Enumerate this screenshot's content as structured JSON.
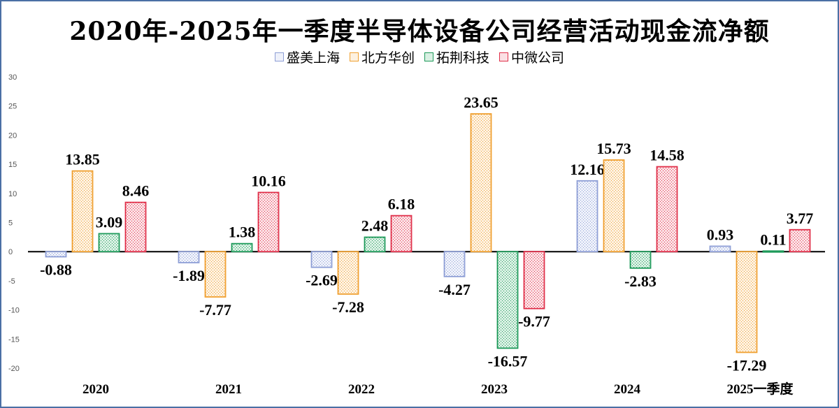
{
  "chart_data": {
    "type": "bar",
    "title": "2020年-2025年一季度半导体设备公司经营活动现金流净额",
    "categories": [
      "2020",
      "2021",
      "2022",
      "2023",
      "2024",
      "2025一季度"
    ],
    "series": [
      {
        "name": "盛美上海",
        "color": "#8e9fd6",
        "values": [
          -0.88,
          -1.89,
          -2.69,
          -4.27,
          12.16,
          0.93
        ]
      },
      {
        "name": "北方华创",
        "color": "#f0a030",
        "values": [
          13.85,
          -7.77,
          -7.28,
          23.65,
          15.73,
          -17.29
        ]
      },
      {
        "name": "拓荆科技",
        "color": "#1e9a5a",
        "values": [
          3.09,
          1.38,
          2.48,
          -16.57,
          -2.83,
          0.11
        ]
      },
      {
        "name": "中微公司",
        "color": "#e0304a",
        "values": [
          8.46,
          10.16,
          6.18,
          -9.77,
          14.58,
          3.77
        ]
      }
    ],
    "data_labels": [
      [
        "-0.88",
        "13.85",
        "3.09",
        "8.46"
      ],
      [
        "-1.89",
        "-7.77",
        "1.38",
        "10.16"
      ],
      [
        "-2.69",
        "-7.28",
        "2.48",
        "6.18"
      ],
      [
        "-4.27",
        "23.65",
        "-16.57",
        "-9.77"
      ],
      [
        "12.16",
        "15.73",
        "-2.83",
        "14.58"
      ],
      [
        "0.93",
        "-17.29",
        "0.11",
        "3.77"
      ]
    ],
    "yticks": [
      "30",
      "25",
      "20",
      "15",
      "10",
      "5",
      "0",
      "-5",
      "-10",
      "-15",
      "-20"
    ],
    "ylim": [
      -20,
      30
    ],
    "grid": false,
    "legend_position": "top-center"
  }
}
